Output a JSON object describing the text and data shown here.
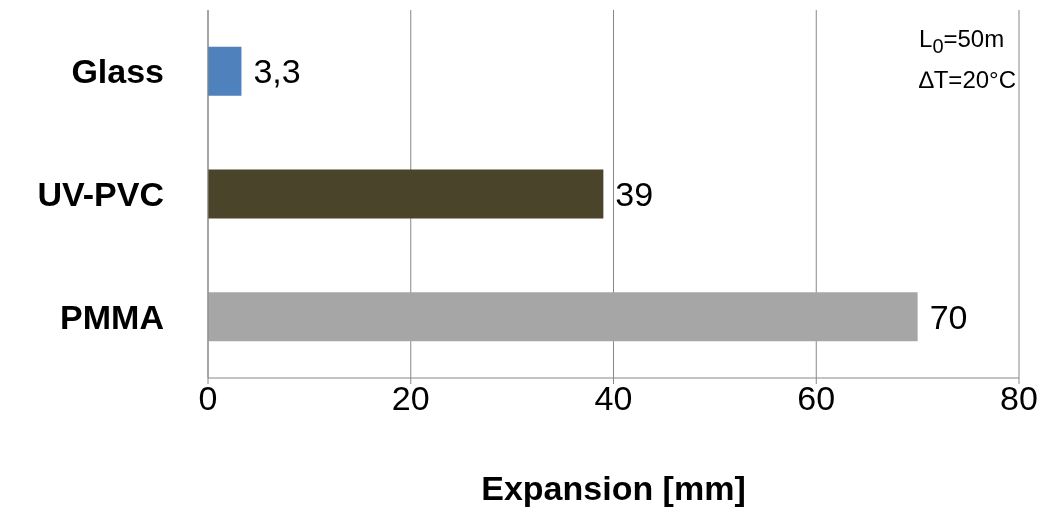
{
  "chart_data": {
    "type": "bar",
    "orientation": "horizontal",
    "categories": [
      "Glass",
      "UV-PVC",
      "PMMA"
    ],
    "values": [
      3.3,
      39,
      70
    ],
    "colors": [
      "#4f81bd",
      "#4a452a",
      "#a6a6a6"
    ],
    "value_labels": [
      "3,3",
      "39",
      "70"
    ],
    "xlim": [
      0,
      80
    ],
    "xticks": [
      0,
      20,
      40,
      60,
      80
    ],
    "grid": "x",
    "xlabel": "Expansion [mm]",
    "annotations": [
      "L$_{0}$=50m",
      "∆T=20°C"
    ]
  }
}
